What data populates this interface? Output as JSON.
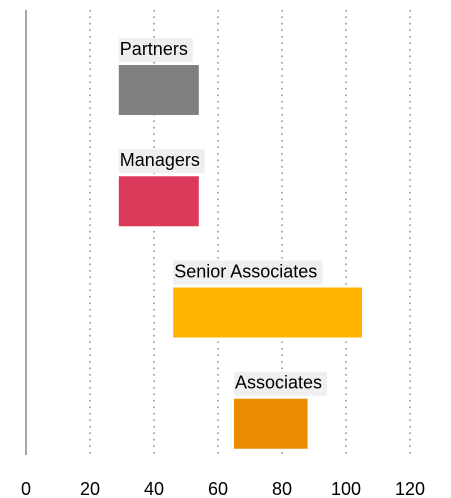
{
  "chart_data": {
    "type": "range_bar",
    "categories": [
      "Partners",
      "Managers",
      "Senior Associates",
      "Associates"
    ],
    "low": [
      29,
      29,
      46,
      65
    ],
    "high": [
      54,
      54,
      105,
      88
    ],
    "colors": [
      "#808080",
      "#dc3a5a",
      "#ffb400",
      "#eb8c00"
    ],
    "xlim": [
      0,
      120
    ],
    "xticks": [
      0,
      20,
      40,
      60,
      80,
      100,
      120
    ],
    "grid": true
  }
}
